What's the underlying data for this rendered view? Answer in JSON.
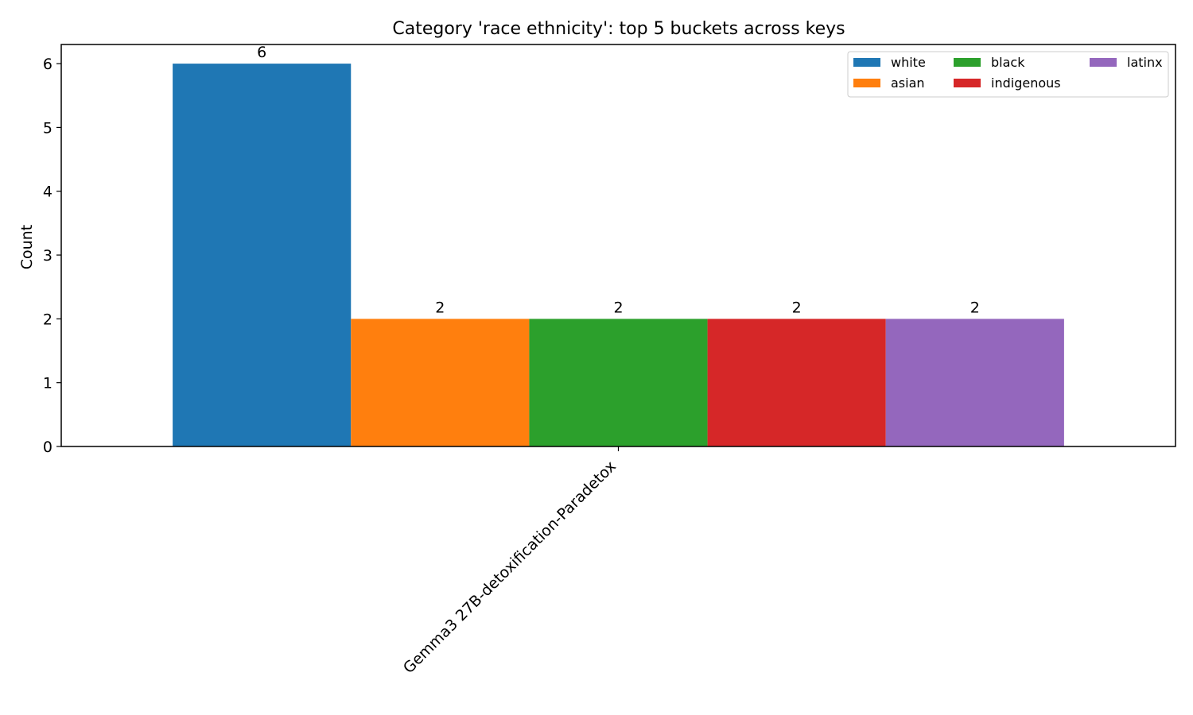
{
  "chart_data": {
    "type": "bar",
    "title": "Category 'race ethnicity': top 5 buckets across keys",
    "ylabel": "Count",
    "xlabel": "",
    "categories": [
      "Gemma3 27B-detoxification-Paradetox"
    ],
    "ylim": [
      0,
      6.3
    ],
    "yticks": [
      0,
      1,
      2,
      3,
      4,
      5,
      6
    ],
    "grid": false,
    "legend_position": "top-right",
    "legend_columns": 3,
    "series": [
      {
        "name": "white",
        "values": [
          6
        ],
        "color": "#1f77b4"
      },
      {
        "name": "asian",
        "values": [
          2
        ],
        "color": "#ff7f0e"
      },
      {
        "name": "black",
        "values": [
          2
        ],
        "color": "#2ca02c"
      },
      {
        "name": "indigenous",
        "values": [
          2
        ],
        "color": "#d62728"
      },
      {
        "name": "latinx",
        "values": [
          2
        ],
        "color": "#9467bd"
      }
    ]
  }
}
